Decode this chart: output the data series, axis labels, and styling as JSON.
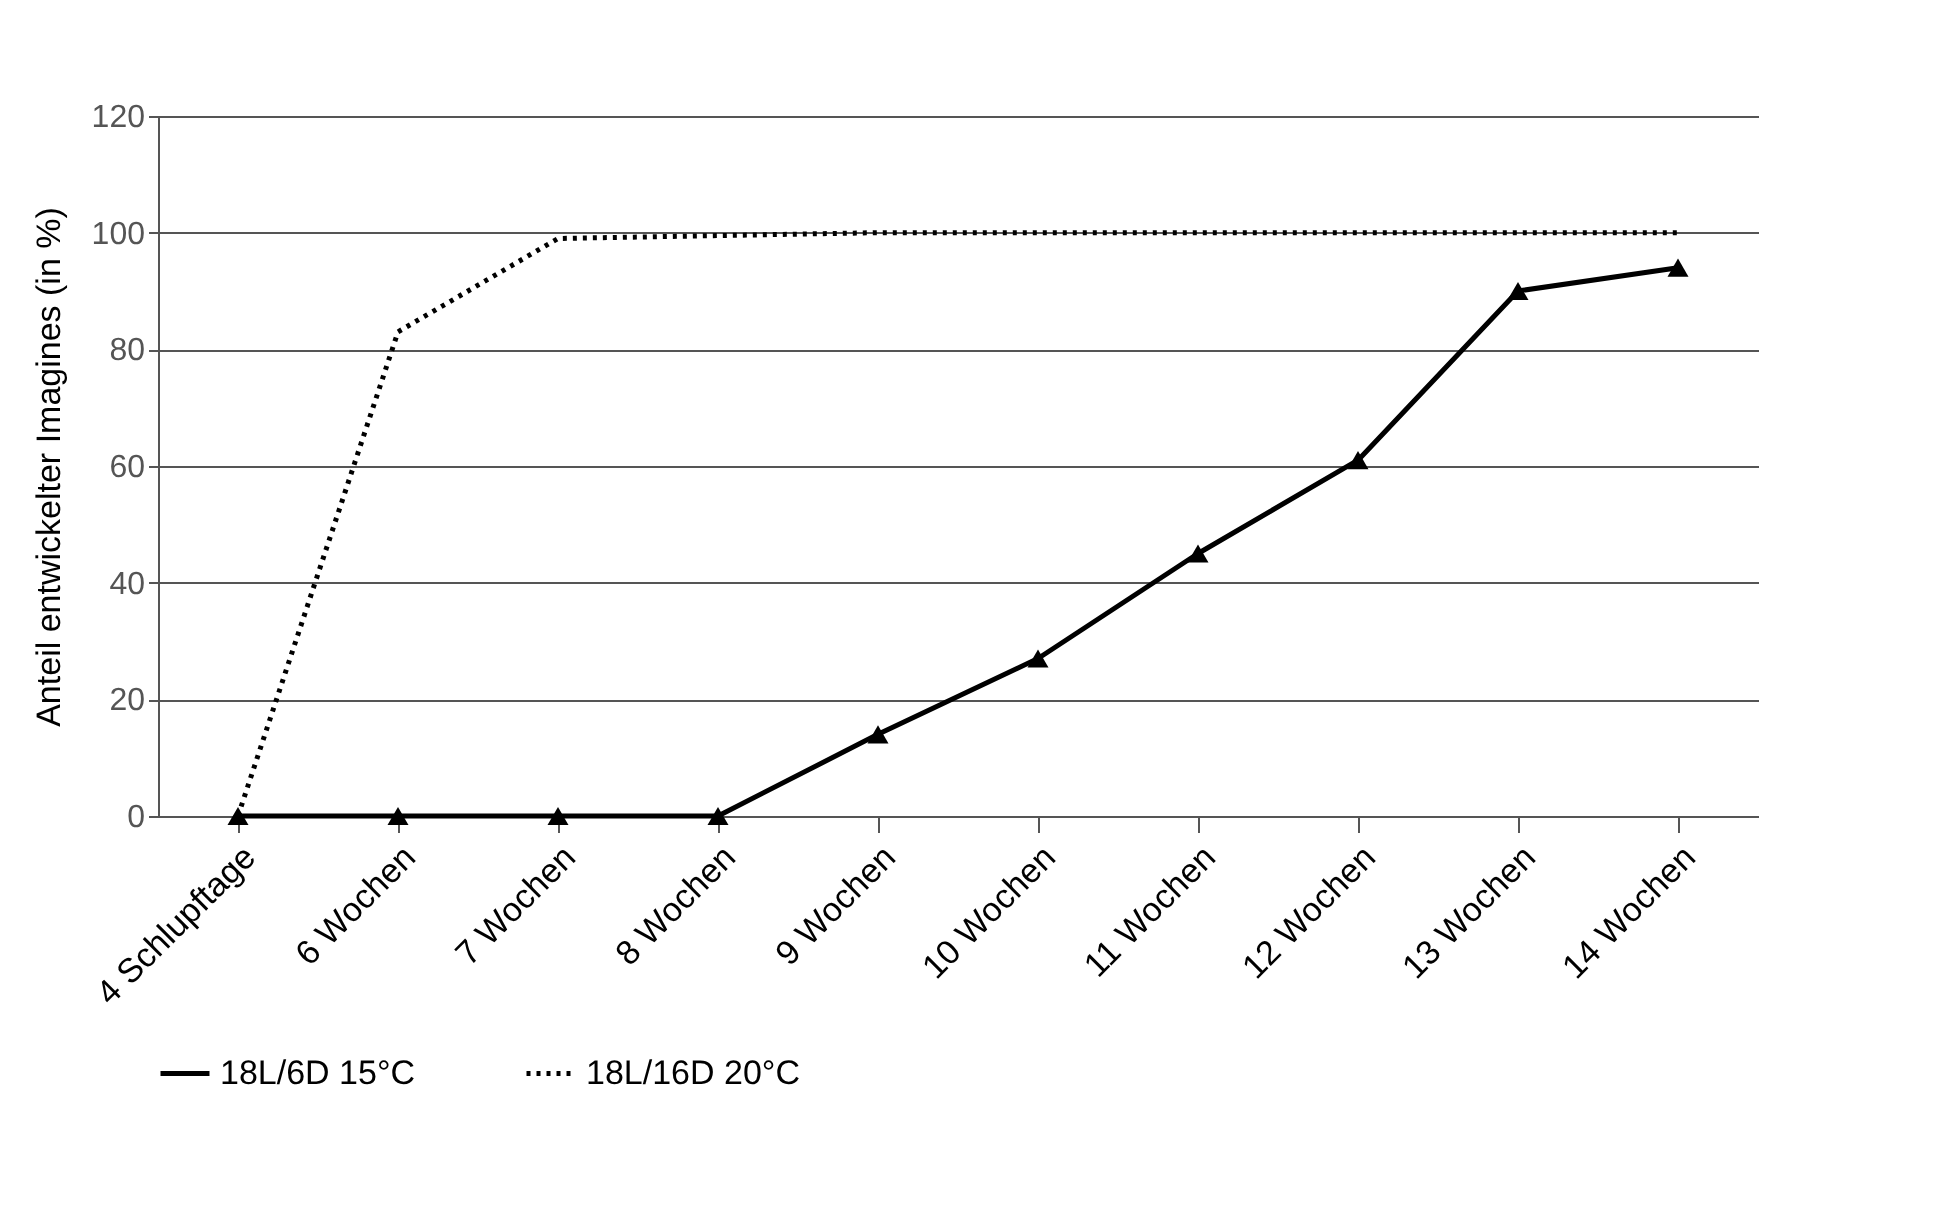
{
  "chart_data": {
    "type": "line",
    "ylabel": "Anteil entwickelter Imagines (in %)",
    "categories": [
      "4 Schlupftage",
      "6 Wochen",
      "7 Wochen",
      "8 Wochen",
      "9 Wochen",
      "10 Wochen",
      "11 Wochen",
      "12 Wochen",
      "13 Wochen",
      "14 Wochen"
    ],
    "series": [
      {
        "name": "18L/6D 15°C",
        "color": "#000000",
        "marker": "triangle",
        "line_style": "solid",
        "values": [
          0,
          0,
          0,
          0,
          14,
          27,
          45,
          61,
          90,
          94
        ]
      },
      {
        "name": "18L/16D 20°C",
        "color": "#000000",
        "marker": "none",
        "line_style": "dotted",
        "values": [
          0,
          83,
          99,
          99.5,
          100,
          100,
          100,
          100,
          100,
          100
        ]
      }
    ],
    "ylim": [
      0,
      120
    ],
    "yticks": [
      0,
      20,
      40,
      60,
      80,
      100,
      120
    ],
    "grid": "y",
    "legend": "bottom"
  }
}
